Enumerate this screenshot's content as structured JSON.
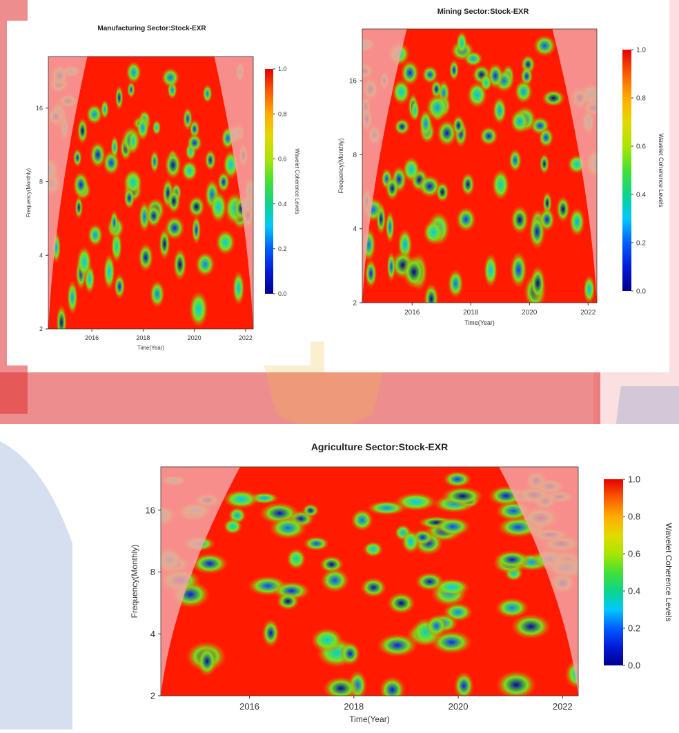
{
  "chart_data": [
    {
      "type": "heatmap",
      "title": "Manufacturing Sector:Stock-EXR",
      "xlabel": "Time(Year)",
      "ylabel": "Frequency(Monthly)",
      "x_ticks": [
        "2016",
        "2018",
        "2020",
        "2022"
      ],
      "y_ticks": [
        "2",
        "4",
        "8",
        "16"
      ],
      "xlim": [
        2014.3,
        2022.3
      ],
      "y_scale": "log2",
      "ylim": [
        2,
        26
      ],
      "colorbar": {
        "label": "Wavelet Coherence Levels",
        "ticks": [
          "0.0",
          "0.2",
          "0.4",
          "0.6",
          "0.8",
          "1.0"
        ],
        "range": [
          0,
          1
        ]
      },
      "cone_of_influence": true
    },
    {
      "type": "heatmap",
      "title": "Mining Sector:Stock-EXR",
      "xlabel": "Time(Year)",
      "ylabel": "Frequency(Monthly)",
      "x_ticks": [
        "2016",
        "2018",
        "2020",
        "2022"
      ],
      "y_ticks": [
        "2",
        "4",
        "8",
        "16"
      ],
      "xlim": [
        2014.3,
        2022.3
      ],
      "y_scale": "log2",
      "ylim": [
        2,
        26
      ],
      "colorbar": {
        "label": "Wavelet Coherence Levels",
        "ticks": [
          "0.0",
          "0.2",
          "0.4",
          "0.6",
          "0.8",
          "1.0"
        ],
        "range": [
          0,
          1
        ]
      },
      "cone_of_influence": true
    },
    {
      "type": "heatmap",
      "title": "Agriculture Sector:Stock-EXR",
      "xlabel": "Time(Year)",
      "ylabel": "Frequency(Monthly)",
      "x_ticks": [
        "2016",
        "2018",
        "2020",
        "2022"
      ],
      "y_ticks": [
        "2",
        "4",
        "8",
        "16"
      ],
      "xlim": [
        2014.3,
        2022.3
      ],
      "y_scale": "log2",
      "ylim": [
        2,
        26
      ],
      "colorbar": {
        "label": "Wavelet Coherence Levels",
        "ticks": [
          "0.0",
          "0.2",
          "0.4",
          "0.6",
          "0.8",
          "1.0"
        ],
        "range": [
          0,
          1
        ]
      },
      "cone_of_influence": true
    }
  ],
  "colors": {
    "high": "#ff1a00",
    "coi_shade": "#f7a3a3",
    "watermark_red": "#e03030",
    "watermark_blue": "#5a7fc0",
    "watermark_gold": "#f0c040"
  }
}
